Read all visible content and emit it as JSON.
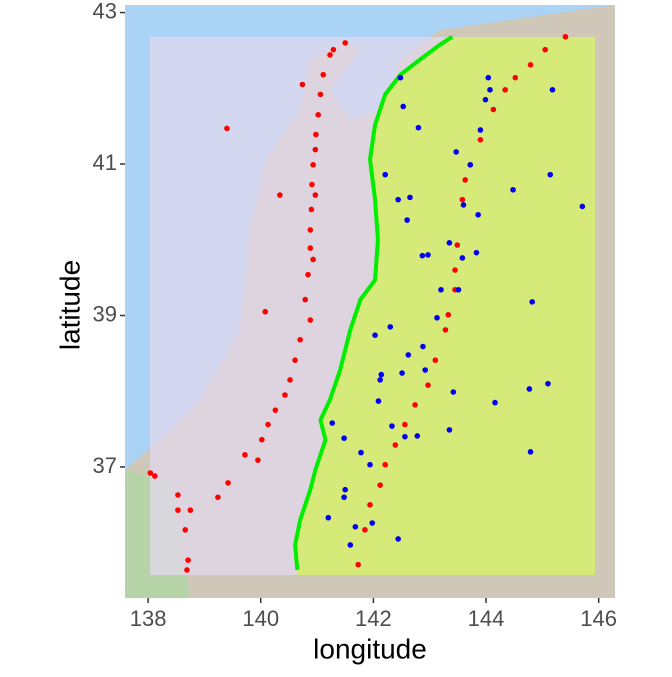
{
  "chart_data": {
    "type": "scatter",
    "x_label": "longitude",
    "y_label": "latitude",
    "xlim": [
      137.59,
      146.29
    ],
    "ylim": [
      35.27,
      43.1
    ],
    "xticks": [
      138,
      140,
      142,
      144,
      146
    ],
    "yticks": [
      37,
      39,
      41,
      43
    ],
    "line": {
      "color": "#00ee00",
      "x": [
        143.4,
        143.19,
        142.83,
        142.48,
        142.21,
        142.03,
        141.94,
        142.03,
        142.08,
        142.03,
        141.77,
        141.59,
        141.41,
        141.23,
        141.06,
        141.15,
        140.97,
        140.88,
        140.7,
        140.61,
        140.65
      ],
      "y": [
        42.68,
        42.58,
        42.38,
        42.18,
        41.92,
        41.52,
        41.06,
        40.53,
        40.0,
        39.47,
        39.21,
        38.81,
        38.28,
        37.89,
        37.62,
        37.36,
        36.96,
        36.7,
        36.3,
        35.97,
        35.64
      ]
    },
    "series": [
      {
        "color": "#ff0000",
        "x": [
          141.5,
          141.29,
          141.23,
          140.74,
          141.11,
          141.06,
          141.02,
          140.98,
          140.97,
          140.93,
          140.91,
          140.97,
          140.34,
          140.9,
          140.88,
          140.88,
          140.93,
          140.84,
          140.79,
          140.08,
          140.88,
          140.7,
          140.61,
          140.52,
          140.43,
          140.26,
          140.13,
          140.02,
          139.95,
          139.42,
          139.24,
          138.04,
          138.12,
          138.53,
          138.53,
          138.75,
          138.66,
          138.71,
          138.69,
          139.72,
          139.4,
          145.41,
          145.05,
          144.79,
          144.52,
          144.34,
          144.13,
          143.9,
          143.72,
          143.63,
          143.58,
          143.49,
          143.45,
          143.45,
          143.33,
          143.28,
          143.1,
          142.97,
          142.74,
          142.56,
          142.39,
          142.21,
          142.12,
          141.94,
          141.85,
          141.73
        ],
        "values": [
          42.6,
          42.51,
          42.44,
          42.05,
          42.18,
          41.92,
          41.65,
          41.39,
          41.19,
          40.99,
          40.73,
          40.59,
          40.59,
          40.4,
          40.13,
          39.89,
          39.74,
          39.54,
          39.21,
          39.05,
          38.94,
          38.68,
          38.41,
          38.15,
          37.95,
          37.75,
          37.56,
          37.36,
          37.09,
          36.79,
          36.6,
          36.92,
          36.88,
          36.63,
          36.43,
          36.43,
          36.17,
          35.77,
          35.64,
          37.16,
          41.47,
          42.68,
          42.51,
          42.31,
          42.14,
          41.98,
          41.72,
          41.32,
          40.99,
          40.79,
          40.53,
          39.93,
          39.6,
          39.34,
          39.01,
          38.81,
          38.41,
          38.08,
          37.82,
          37.56,
          37.29,
          37.03,
          36.76,
          36.5,
          36.17,
          35.71
        ]
      },
      {
        "color": "#0000ee",
        "x": [
          142.48,
          142.53,
          142.8,
          143.47,
          142.21,
          142.65,
          142.44,
          142.6,
          143.6,
          143.86,
          144.48,
          145.14,
          145.71,
          144.07,
          144.04,
          145.18,
          143.9,
          143.35,
          143.58,
          143.83,
          142.97,
          142.87,
          143.13,
          143.51,
          143.2,
          142.3,
          142.03,
          142.88,
          142.62,
          142.92,
          142.14,
          142.51,
          142.12,
          142.09,
          143.42,
          144.77,
          145.1,
          144.79,
          144.16,
          141.27,
          142.33,
          142.78,
          143.35,
          141.48,
          141.78,
          141.94,
          141.5,
          141.48,
          141.2,
          141.68,
          141.98,
          141.59,
          142.44,
          144.82,
          143.99,
          143.72,
          142.56
        ],
        "values": [
          42.14,
          41.76,
          41.48,
          41.16,
          40.86,
          40.56,
          40.53,
          40.26,
          40.46,
          40.33,
          40.66,
          40.86,
          40.44,
          41.98,
          42.14,
          41.98,
          41.45,
          39.96,
          39.76,
          39.83,
          39.8,
          39.79,
          38.97,
          39.34,
          39.34,
          38.85,
          38.74,
          38.59,
          38.48,
          38.28,
          38.22,
          38.24,
          38.15,
          37.87,
          37.99,
          38.03,
          38.1,
          37.2,
          37.85,
          37.58,
          37.54,
          37.41,
          37.49,
          37.38,
          37.19,
          37.03,
          36.7,
          36.6,
          36.33,
          36.21,
          36.26,
          35.97,
          36.05,
          39.18,
          41.85,
          40.99,
          37.4
        ]
      }
    ]
  }
}
